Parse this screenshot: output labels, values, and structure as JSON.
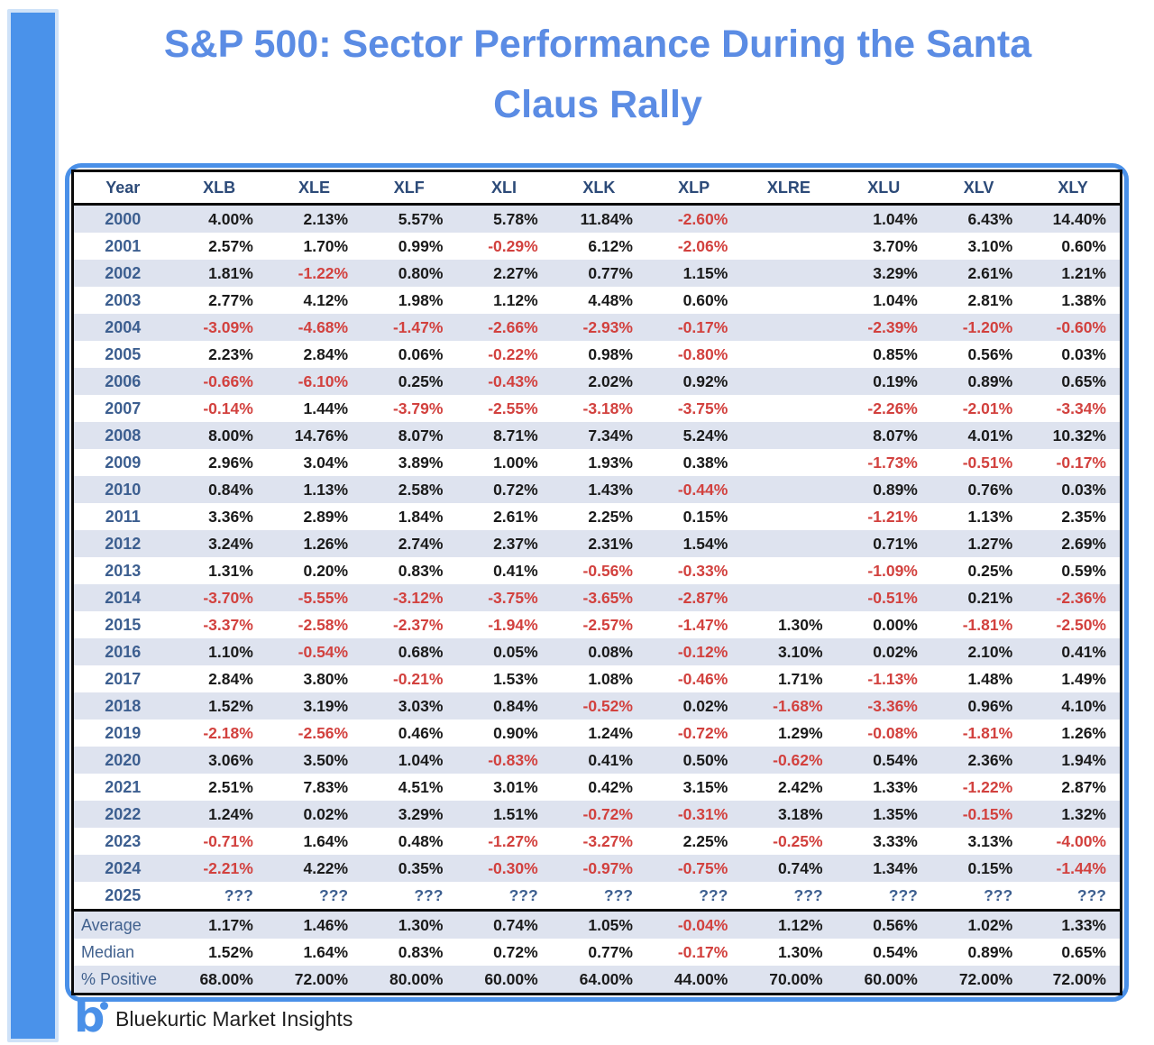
{
  "title": {
    "line1": "S&P 500: Sector Performance During the Santa",
    "line2": "Claus Rally"
  },
  "colors": {
    "accent_blue": "#4a90e8",
    "title_blue": "#5b8ce4",
    "band_background": "#dee3ef",
    "negative_red": "#d2413e",
    "steel_blue_text": "#3d5f90",
    "header_text": "#2c4a78"
  },
  "footer": {
    "logo_letter": "b",
    "brand": "Bluekurtic Market Insights"
  },
  "chart_data": {
    "type": "table",
    "title": "S&P 500: Sector Performance During the Santa Claus Rally",
    "columns": [
      "Year",
      "XLB",
      "XLE",
      "XLF",
      "XLI",
      "XLK",
      "XLP",
      "XLRE",
      "XLU",
      "XLV",
      "XLY"
    ],
    "rows": [
      {
        "year": "2000",
        "values": [
          "4.00%",
          "2.13%",
          "5.57%",
          "5.78%",
          "11.84%",
          "-2.60%",
          "",
          "1.04%",
          "6.43%",
          "14.40%"
        ]
      },
      {
        "year": "2001",
        "values": [
          "2.57%",
          "1.70%",
          "0.99%",
          "-0.29%",
          "6.12%",
          "-2.06%",
          "",
          "3.70%",
          "3.10%",
          "0.60%"
        ]
      },
      {
        "year": "2002",
        "values": [
          "1.81%",
          "-1.22%",
          "0.80%",
          "2.27%",
          "0.77%",
          "1.15%",
          "",
          "3.29%",
          "2.61%",
          "1.21%"
        ]
      },
      {
        "year": "2003",
        "values": [
          "2.77%",
          "4.12%",
          "1.98%",
          "1.12%",
          "4.48%",
          "0.60%",
          "",
          "1.04%",
          "2.81%",
          "1.38%"
        ]
      },
      {
        "year": "2004",
        "values": [
          "-3.09%",
          "-4.68%",
          "-1.47%",
          "-2.66%",
          "-2.93%",
          "-0.17%",
          "",
          "-2.39%",
          "-1.20%",
          "-0.60%"
        ]
      },
      {
        "year": "2005",
        "values": [
          "2.23%",
          "2.84%",
          "0.06%",
          "-0.22%",
          "0.98%",
          "-0.80%",
          "",
          "0.85%",
          "0.56%",
          "0.03%"
        ]
      },
      {
        "year": "2006",
        "values": [
          "-0.66%",
          "-6.10%",
          "0.25%",
          "-0.43%",
          "2.02%",
          "0.92%",
          "",
          "0.19%",
          "0.89%",
          "0.65%"
        ]
      },
      {
        "year": "2007",
        "values": [
          "-0.14%",
          "1.44%",
          "-3.79%",
          "-2.55%",
          "-3.18%",
          "-3.75%",
          "",
          "-2.26%",
          "-2.01%",
          "-3.34%"
        ]
      },
      {
        "year": "2008",
        "values": [
          "8.00%",
          "14.76%",
          "8.07%",
          "8.71%",
          "7.34%",
          "5.24%",
          "",
          "8.07%",
          "4.01%",
          "10.32%"
        ]
      },
      {
        "year": "2009",
        "values": [
          "2.96%",
          "3.04%",
          "3.89%",
          "1.00%",
          "1.93%",
          "0.38%",
          "",
          "-1.73%",
          "-0.51%",
          "-0.17%"
        ]
      },
      {
        "year": "2010",
        "values": [
          "0.84%",
          "1.13%",
          "2.58%",
          "0.72%",
          "1.43%",
          "-0.44%",
          "",
          "0.89%",
          "0.76%",
          "0.03%"
        ]
      },
      {
        "year": "2011",
        "values": [
          "3.36%",
          "2.89%",
          "1.84%",
          "2.61%",
          "2.25%",
          "0.15%",
          "",
          "-1.21%",
          "1.13%",
          "2.35%"
        ]
      },
      {
        "year": "2012",
        "values": [
          "3.24%",
          "1.26%",
          "2.74%",
          "2.37%",
          "2.31%",
          "1.54%",
          "",
          "0.71%",
          "1.27%",
          "2.69%"
        ]
      },
      {
        "year": "2013",
        "values": [
          "1.31%",
          "0.20%",
          "0.83%",
          "0.41%",
          "-0.56%",
          "-0.33%",
          "",
          "-1.09%",
          "0.25%",
          "0.59%"
        ]
      },
      {
        "year": "2014",
        "values": [
          "-3.70%",
          "-5.55%",
          "-3.12%",
          "-3.75%",
          "-3.65%",
          "-2.87%",
          "",
          "-0.51%",
          "0.21%",
          "-2.36%"
        ]
      },
      {
        "year": "2015",
        "values": [
          "-3.37%",
          "-2.58%",
          "-2.37%",
          "-1.94%",
          "-2.57%",
          "-1.47%",
          "1.30%",
          "0.00%",
          "-1.81%",
          "-2.50%"
        ]
      },
      {
        "year": "2016",
        "values": [
          "1.10%",
          "-0.54%",
          "0.68%",
          "0.05%",
          "0.08%",
          "-0.12%",
          "3.10%",
          "0.02%",
          "2.10%",
          "0.41%"
        ]
      },
      {
        "year": "2017",
        "values": [
          "2.84%",
          "3.80%",
          "-0.21%",
          "1.53%",
          "1.08%",
          "-0.46%",
          "1.71%",
          "-1.13%",
          "1.48%",
          "1.49%"
        ]
      },
      {
        "year": "2018",
        "values": [
          "1.52%",
          "3.19%",
          "3.03%",
          "0.84%",
          "-0.52%",
          "0.02%",
          "-1.68%",
          "-3.36%",
          "0.96%",
          "4.10%"
        ]
      },
      {
        "year": "2019",
        "values": [
          "-2.18%",
          "-2.56%",
          "0.46%",
          "0.90%",
          "1.24%",
          "-0.72%",
          "1.29%",
          "-0.08%",
          "-1.81%",
          "1.26%"
        ]
      },
      {
        "year": "2020",
        "values": [
          "3.06%",
          "3.50%",
          "1.04%",
          "-0.83%",
          "0.41%",
          "0.50%",
          "-0.62%",
          "0.54%",
          "2.36%",
          "1.94%"
        ]
      },
      {
        "year": "2021",
        "values": [
          "2.51%",
          "7.83%",
          "4.51%",
          "3.01%",
          "0.42%",
          "3.15%",
          "2.42%",
          "1.33%",
          "-1.22%",
          "2.87%"
        ]
      },
      {
        "year": "2022",
        "values": [
          "1.24%",
          "0.02%",
          "3.29%",
          "1.51%",
          "-0.72%",
          "-0.31%",
          "3.18%",
          "1.35%",
          "-0.15%",
          "1.32%"
        ]
      },
      {
        "year": "2023",
        "values": [
          "-0.71%",
          "1.64%",
          "0.48%",
          "-1.27%",
          "-3.27%",
          "2.25%",
          "-0.25%",
          "3.33%",
          "3.13%",
          "-4.00%"
        ]
      },
      {
        "year": "2024",
        "values": [
          "-2.21%",
          "4.22%",
          "0.35%",
          "-0.30%",
          "-0.97%",
          "-0.75%",
          "0.74%",
          "1.34%",
          "0.15%",
          "-1.44%"
        ]
      },
      {
        "year": "2025",
        "values": [
          "???",
          "???",
          "???",
          "???",
          "???",
          "???",
          "???",
          "???",
          "???",
          "???"
        ]
      }
    ],
    "summary": [
      {
        "label": "Average",
        "values": [
          "1.17%",
          "1.46%",
          "1.30%",
          "0.74%",
          "1.05%",
          "-0.04%",
          "1.12%",
          "0.56%",
          "1.02%",
          "1.33%"
        ]
      },
      {
        "label": "Median",
        "values": [
          "1.52%",
          "1.64%",
          "0.83%",
          "0.72%",
          "0.77%",
          "-0.17%",
          "1.30%",
          "0.54%",
          "0.89%",
          "0.65%"
        ]
      },
      {
        "label": "% Positive",
        "values": [
          "68.00%",
          "72.00%",
          "80.00%",
          "60.00%",
          "64.00%",
          "44.00%",
          "70.00%",
          "60.00%",
          "72.00%",
          "72.00%"
        ]
      }
    ]
  }
}
